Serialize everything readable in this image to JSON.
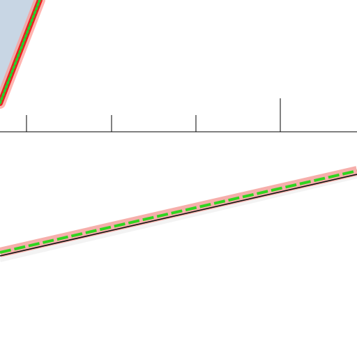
{
  "scene": {
    "background": "#ffffff",
    "axis_color": "#000000",
    "tick_count": 4
  },
  "upper_route": {
    "corridor_color": "#c8d6e4",
    "halo_color": "#ff9b96",
    "line_color": "#e8201f",
    "dash_color": "#22d42a",
    "dash_style": "dotted"
  },
  "lower_route": {
    "halo_color": "#f6a7a2",
    "line_color": "#111111",
    "dash_color": "#2fd41f",
    "dash_style": "dashed"
  }
}
